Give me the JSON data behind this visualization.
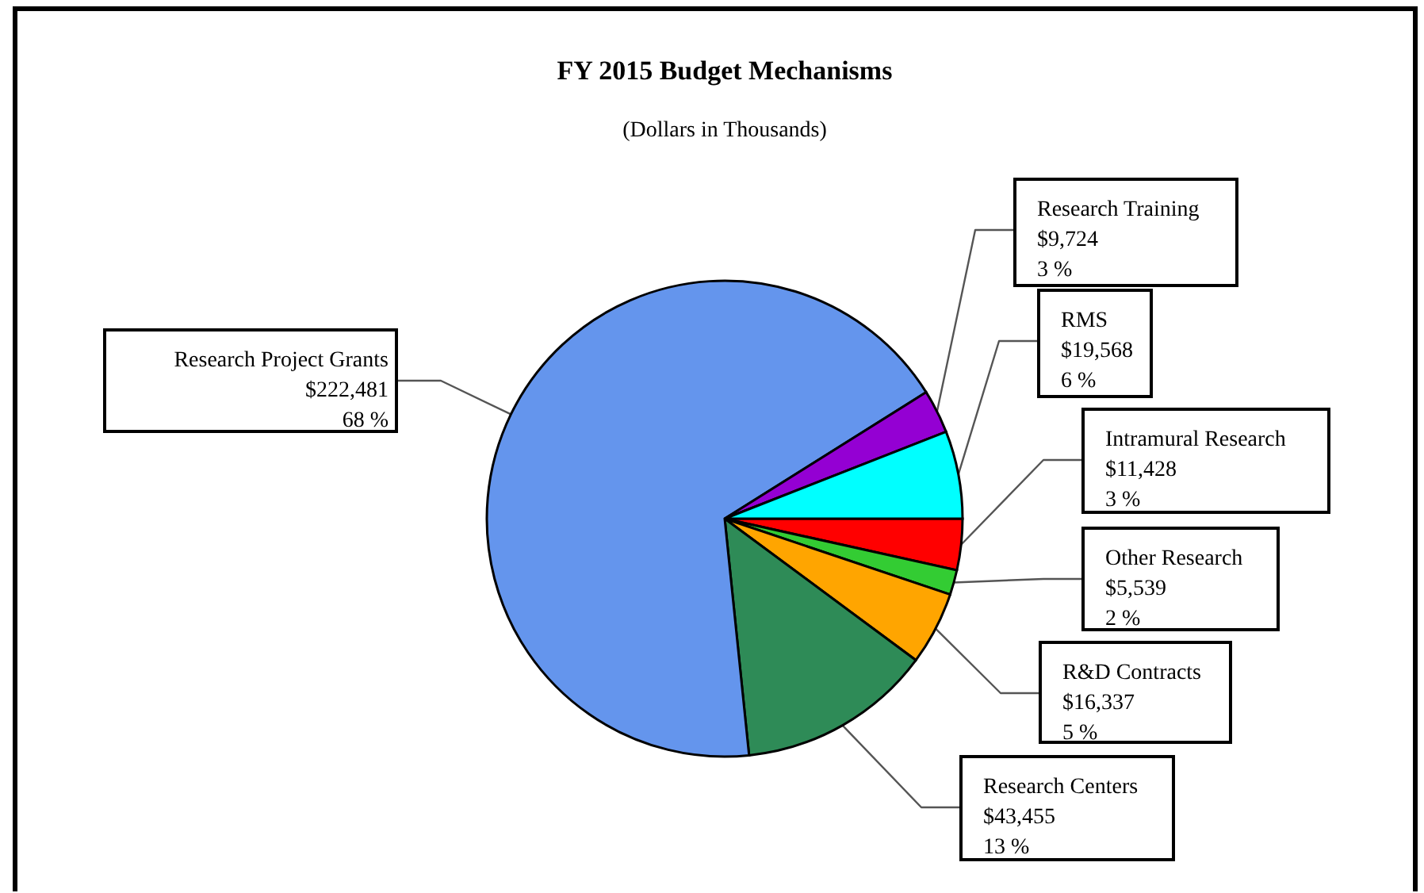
{
  "chart_data": {
    "type": "pie",
    "title": "FY 2015 Budget Mechanisms",
    "subtitle": "(Dollars in Thousands)",
    "categories": [
      "Intramural Research",
      "Other Research",
      "R&D Contracts",
      "Research Centers",
      "Research Project Grants",
      "Research Training",
      "RMS"
    ],
    "values": [
      11428,
      5539,
      16337,
      43455,
      222481,
      9724,
      19568
    ],
    "value_labels": [
      "$11,428\n3 %",
      "$5,539\n2 %",
      "$16,337\n5 %",
      "$43,455\n13 %",
      "$222,481\n68 %",
      "$9,724\n3 %",
      "$19,568\n6 %"
    ],
    "colors": [
      "#ff0000",
      "#33cc33",
      "#ffa500",
      "#2e8b57",
      "#6495ed",
      "#9400d3",
      "#00ffff"
    ]
  }
}
